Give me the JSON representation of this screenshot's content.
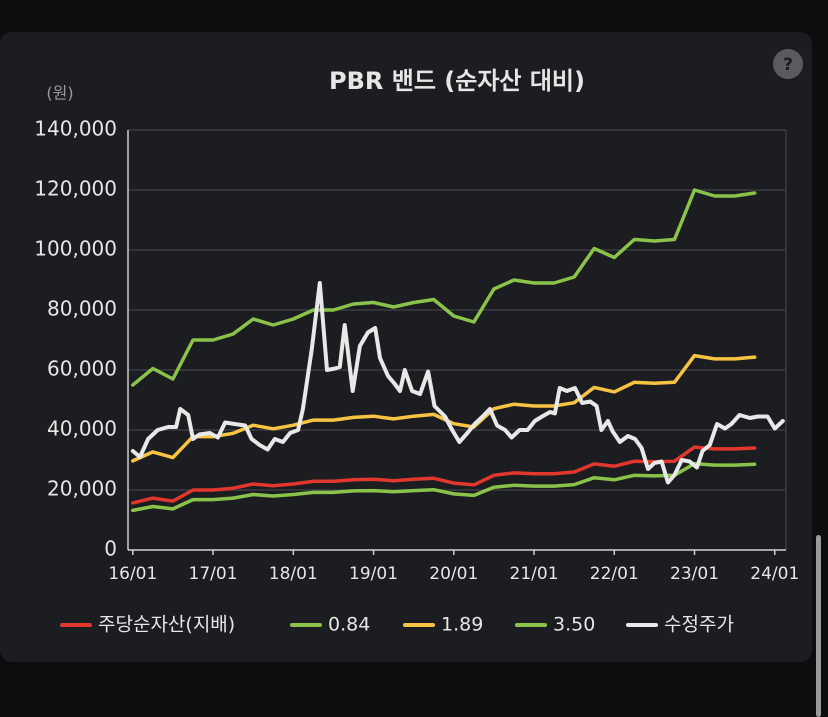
{
  "help": "?",
  "chart_data": {
    "type": "line",
    "title": "PBR 밴드 (순자산 대비)",
    "y_label": "(원)",
    "xlim": [
      2015.94,
      2024.14
    ],
    "xticks": [
      {
        "value": 2016,
        "label": "16/01"
      },
      {
        "value": 2017,
        "label": "17/01"
      },
      {
        "value": 2018,
        "label": "18/01"
      },
      {
        "value": 2019,
        "label": "19/01"
      },
      {
        "value": 2020,
        "label": "20/01"
      },
      {
        "value": 2021,
        "label": "21/01"
      },
      {
        "value": 2022,
        "label": "22/01"
      },
      {
        "value": 2023,
        "label": "23/01"
      },
      {
        "value": 2024,
        "label": "24/01"
      }
    ],
    "ylim": [
      0,
      140000
    ],
    "yticks": [
      0,
      {
        "value": 20000,
        "label": "20,000"
      },
      {
        "value": 40000,
        "label": "40,000"
      },
      {
        "value": 60000,
        "label": "60,000"
      },
      {
        "value": 80000,
        "label": "80,000"
      },
      {
        "value": 100000,
        "label": "100,000"
      },
      {
        "value": 120000,
        "label": "120,000"
      },
      {
        "value": 140000,
        "label": "140,000"
      }
    ],
    "grid": true,
    "legend": "bottom",
    "x": [
      2016.0,
      2016.25,
      2016.5,
      2016.75,
      2017.0,
      2017.25,
      2017.5,
      2017.75,
      2018.0,
      2018.25,
      2018.5,
      2018.75,
      2019.0,
      2019.25,
      2019.5,
      2019.75,
      2020.0,
      2020.25,
      2020.5,
      2020.75,
      2021.0,
      2021.25,
      2021.5,
      2021.75,
      2022.0,
      2022.25,
      2022.5,
      2022.75,
      2023.0,
      2023.25,
      2023.5,
      2023.75
    ],
    "series": [
      {
        "name": "주당순자산(지배)",
        "color": "#e2372c",
        "values": [
          15700,
          17300,
          16300,
          20000,
          20000,
          20600,
          22000,
          21400,
          22000,
          22900,
          22900,
          23400,
          23600,
          23100,
          23600,
          23900,
          22300,
          21700,
          24900,
          25700,
          25400,
          25400,
          26000,
          28700,
          27900,
          29600,
          29400,
          29600,
          34300,
          33700,
          33700,
          34000
        ]
      },
      {
        "name": "0.84",
        "color": "#8bc34a",
        "values": [
          13200,
          14500,
          13700,
          16800,
          16800,
          17300,
          18500,
          18000,
          18500,
          19200,
          19200,
          19700,
          19800,
          19400,
          19800,
          20100,
          18700,
          18200,
          20900,
          21600,
          21300,
          21300,
          21800,
          24100,
          23400,
          24900,
          24700,
          24900,
          28800,
          28300,
          28300,
          28600
        ]
      },
      {
        "name": "1.89",
        "color": "#f6c342",
        "values": [
          29700,
          32700,
          30800,
          37800,
          37800,
          38900,
          41600,
          40400,
          41600,
          43300,
          43300,
          44200,
          44600,
          43700,
          44600,
          45200,
          42100,
          41000,
          47100,
          48600,
          48000,
          48000,
          49100,
          54200,
          52700,
          55900,
          55600,
          55900,
          64800,
          63700,
          63700,
          64300
        ]
      },
      {
        "name": "3.50",
        "color": "#8bc34a",
        "values": [
          55000,
          60500,
          57000,
          70000,
          70000,
          72000,
          77000,
          75000,
          77000,
          80000,
          80000,
          82000,
          82500,
          81000,
          82500,
          83500,
          78000,
          76000,
          87000,
          90000,
          89000,
          89000,
          91000,
          100500,
          97500,
          103500,
          103000,
          103500,
          120000,
          118000,
          118000,
          119000
        ]
      },
      {
        "name": "수정주가",
        "color": "#e8e8e8",
        "x": [
          2016.0,
          2016.09,
          2016.19,
          2016.31,
          2016.44,
          2016.54,
          2016.59,
          2016.69,
          2016.75,
          2016.83,
          2016.96,
          2017.06,
          2017.15,
          2017.27,
          2017.4,
          2017.48,
          2017.58,
          2017.68,
          2017.77,
          2017.87,
          2017.96,
          2018.06,
          2018.12,
          2018.23,
          2018.33,
          2018.42,
          2018.52,
          2018.58,
          2018.64,
          2018.74,
          2018.83,
          2018.93,
          2019.02,
          2019.08,
          2019.18,
          2019.26,
          2019.33,
          2019.39,
          2019.48,
          2019.58,
          2019.68,
          2019.76,
          2019.89,
          2019.98,
          2020.07,
          2020.17,
          2020.26,
          2020.36,
          2020.45,
          2020.54,
          2020.64,
          2020.72,
          2020.82,
          2020.92,
          2021.01,
          2021.1,
          2021.2,
          2021.26,
          2021.32,
          2021.41,
          2021.51,
          2021.6,
          2021.7,
          2021.78,
          2021.84,
          2021.92,
          2021.98,
          2022.07,
          2022.17,
          2022.26,
          2022.34,
          2022.42,
          2022.5,
          2022.59,
          2022.67,
          2022.75,
          2022.84,
          2022.94,
          2023.03,
          2023.1,
          2023.19,
          2023.28,
          2023.38,
          2023.46,
          2023.56,
          2023.69,
          2023.79,
          2023.91,
          2024.0,
          2024.1
        ],
        "values": [
          33000,
          31000,
          37000,
          40000,
          41000,
          41000,
          47000,
          45000,
          37000,
          38500,
          39000,
          37500,
          42500,
          42000,
          41500,
          37000,
          35000,
          33500,
          37000,
          36000,
          39000,
          40000,
          47000,
          67000,
          89000,
          60000,
          60500,
          61000,
          75000,
          53000,
          68000,
          72500,
          74000,
          64000,
          58000,
          55500,
          53000,
          60000,
          53000,
          52000,
          59500,
          48000,
          44500,
          40000,
          36000,
          39000,
          42000,
          44500,
          47000,
          41500,
          40000,
          37500,
          40000,
          40000,
          43000,
          44500,
          46000,
          45500,
          54000,
          53000,
          54000,
          49000,
          49500,
          48000,
          40000,
          43000,
          39500,
          36000,
          38000,
          37000,
          34000,
          27000,
          29000,
          29500,
          22500,
          25000,
          30000,
          29500,
          27500,
          33000,
          35000,
          42000,
          40500,
          42000,
          45000,
          44000,
          44500,
          44500,
          40500,
          43000
        ]
      }
    ]
  }
}
